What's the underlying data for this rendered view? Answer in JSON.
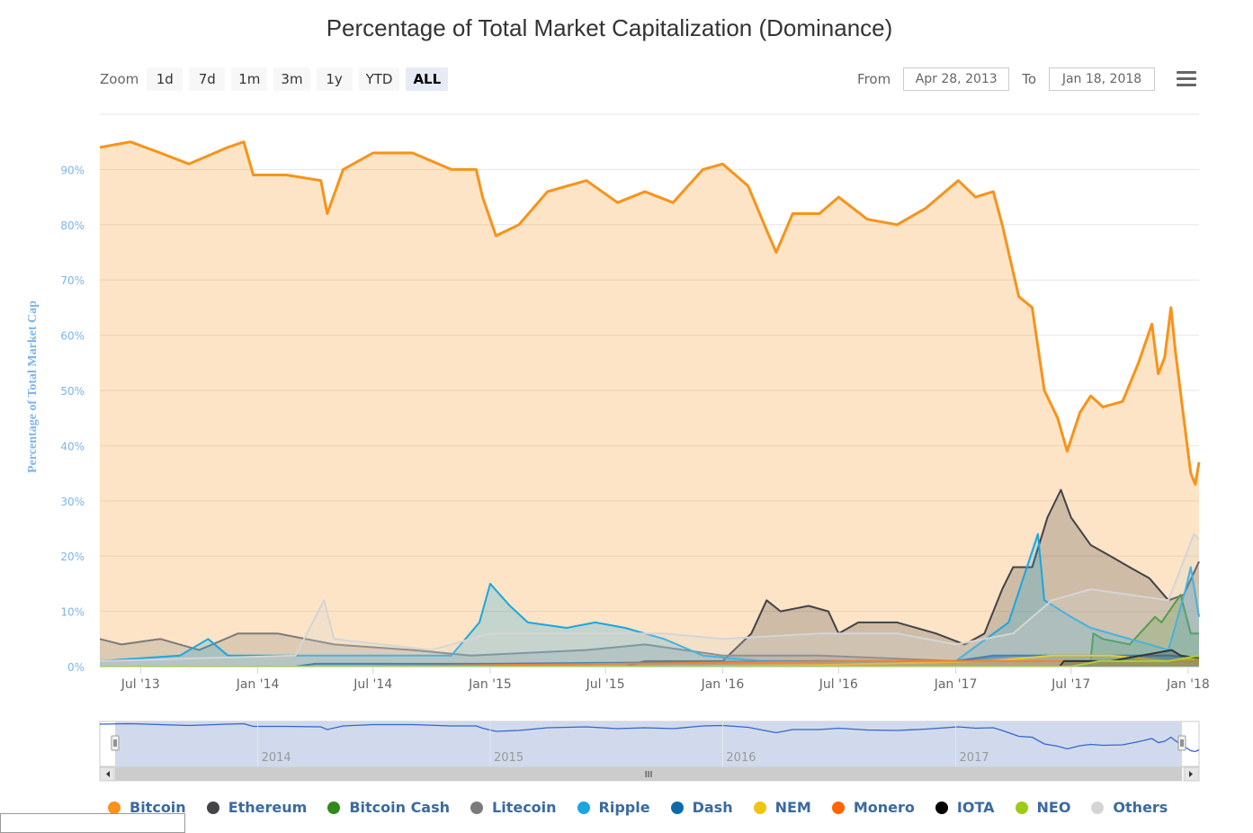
{
  "title": "Percentage of Total Market Capitalization (Dominance)",
  "zoom": {
    "label": "Zoom",
    "buttons": [
      "1d",
      "7d",
      "1m",
      "3m",
      "1y",
      "YTD",
      "ALL"
    ],
    "active": "ALL"
  },
  "range": {
    "from_label": "From",
    "from_value": "Apr 28, 2013",
    "to_label": "To",
    "to_value": "Jan 18, 2018"
  },
  "menu_icon": "hamburger-menu-icon",
  "navigator": {
    "year_labels": [
      "2014",
      "2015",
      "2016",
      "2017"
    ],
    "scroll_left_icon": "arrow-left-icon",
    "scroll_right_icon": "arrow-right-icon",
    "grip": "III"
  },
  "chart_data": {
    "type": "area",
    "title": "Percentage of Total Market Capitalization (Dominance)",
    "ylabel": "Percentage of Total Market Cap",
    "xlabel": "",
    "ylim": [
      0,
      100
    ],
    "yticks": [
      "0%",
      "10%",
      "20%",
      "30%",
      "40%",
      "50%",
      "60%",
      "70%",
      "80%",
      "90%"
    ],
    "xticks": [
      "Jul '13",
      "Jan '14",
      "Jul '14",
      "Jan '15",
      "Jul '15",
      "Jan '16",
      "Jul '16",
      "Jan '17",
      "Jul '17",
      "Jan '18"
    ],
    "x_range": [
      "2013-04-28",
      "2018-01-18"
    ],
    "grid": true,
    "legend_position": "bottom",
    "series": [
      {
        "name": "Bitcoin",
        "color": "#f7931a",
        "points": [
          [
            "2013-04-28",
            94
          ],
          [
            "2013-06-15",
            95
          ],
          [
            "2013-08-01",
            93
          ],
          [
            "2013-09-15",
            91
          ],
          [
            "2013-11-15",
            94
          ],
          [
            "2013-12-10",
            95
          ],
          [
            "2013-12-25",
            89
          ],
          [
            "2014-02-15",
            89
          ],
          [
            "2014-04-10",
            88
          ],
          [
            "2014-04-20",
            82
          ],
          [
            "2014-05-15",
            90
          ],
          [
            "2014-07-01",
            93
          ],
          [
            "2014-09-01",
            93
          ],
          [
            "2014-11-01",
            90
          ],
          [
            "2014-12-10",
            90
          ],
          [
            "2014-12-20",
            85
          ],
          [
            "2015-01-10",
            78
          ],
          [
            "2015-02-15",
            80
          ],
          [
            "2015-04-01",
            86
          ],
          [
            "2015-06-01",
            88
          ],
          [
            "2015-07-20",
            84
          ],
          [
            "2015-09-01",
            86
          ],
          [
            "2015-10-15",
            84
          ],
          [
            "2015-12-01",
            90
          ],
          [
            "2016-01-01",
            91
          ],
          [
            "2016-02-10",
            87
          ],
          [
            "2016-03-10",
            79
          ],
          [
            "2016-03-25",
            75
          ],
          [
            "2016-04-20",
            82
          ],
          [
            "2016-06-01",
            82
          ],
          [
            "2016-07-01",
            85
          ],
          [
            "2016-08-15",
            81
          ],
          [
            "2016-10-01",
            80
          ],
          [
            "2016-11-15",
            83
          ],
          [
            "2017-01-05",
            88
          ],
          [
            "2017-02-01",
            85
          ],
          [
            "2017-03-01",
            86
          ],
          [
            "2017-03-15",
            80
          ],
          [
            "2017-04-10",
            67
          ],
          [
            "2017-05-01",
            65
          ],
          [
            "2017-05-20",
            50
          ],
          [
            "2017-06-10",
            45
          ],
          [
            "2017-06-25",
            39
          ],
          [
            "2017-07-15",
            46
          ],
          [
            "2017-08-01",
            49
          ],
          [
            "2017-08-20",
            47
          ],
          [
            "2017-09-20",
            48
          ],
          [
            "2017-10-15",
            55
          ],
          [
            "2017-11-05",
            62
          ],
          [
            "2017-11-15",
            53
          ],
          [
            "2017-11-25",
            56
          ],
          [
            "2017-12-05",
            65
          ],
          [
            "2017-12-12",
            57
          ],
          [
            "2017-12-25",
            45
          ],
          [
            "2018-01-05",
            35
          ],
          [
            "2018-01-12",
            33
          ],
          [
            "2018-01-18",
            37
          ]
        ]
      },
      {
        "name": "Ethereum",
        "color": "#434348",
        "points": [
          [
            "2013-04-28",
            0
          ],
          [
            "2015-08-01",
            0
          ],
          [
            "2015-09-01",
            1
          ],
          [
            "2016-01-01",
            1
          ],
          [
            "2016-02-15",
            6
          ],
          [
            "2016-03-10",
            12
          ],
          [
            "2016-04-01",
            10
          ],
          [
            "2016-05-15",
            11
          ],
          [
            "2016-06-15",
            10
          ],
          [
            "2016-07-01",
            6
          ],
          [
            "2016-08-01",
            8
          ],
          [
            "2016-10-01",
            8
          ],
          [
            "2016-12-01",
            6
          ],
          [
            "2017-01-15",
            4
          ],
          [
            "2017-02-15",
            6
          ],
          [
            "2017-03-15",
            14
          ],
          [
            "2017-04-01",
            18
          ],
          [
            "2017-05-01",
            18
          ],
          [
            "2017-05-25",
            27
          ],
          [
            "2017-06-15",
            32
          ],
          [
            "2017-07-01",
            27
          ],
          [
            "2017-08-01",
            22
          ],
          [
            "2017-09-01",
            20
          ],
          [
            "2017-10-01",
            18
          ],
          [
            "2017-11-01",
            16
          ],
          [
            "2017-12-01",
            12
          ],
          [
            "2017-12-25",
            13
          ],
          [
            "2018-01-10",
            17
          ],
          [
            "2018-01-18",
            19
          ]
        ]
      },
      {
        "name": "Bitcoin Cash",
        "color": "#2f8a1c",
        "points": [
          [
            "2013-04-28",
            0
          ],
          [
            "2017-07-31",
            0
          ],
          [
            "2017-08-05",
            6
          ],
          [
            "2017-08-20",
            5
          ],
          [
            "2017-10-01",
            4
          ],
          [
            "2017-11-10",
            9
          ],
          [
            "2017-11-20",
            8
          ],
          [
            "2017-12-20",
            13
          ],
          [
            "2018-01-05",
            6
          ],
          [
            "2018-01-18",
            6
          ]
        ]
      },
      {
        "name": "Litecoin",
        "color": "#7a7a7a",
        "points": [
          [
            "2013-04-28",
            5
          ],
          [
            "2013-06-01",
            4
          ],
          [
            "2013-08-01",
            5
          ],
          [
            "2013-10-01",
            3
          ],
          [
            "2013-12-01",
            6
          ],
          [
            "2014-02-01",
            6
          ],
          [
            "2014-05-01",
            4
          ],
          [
            "2014-09-01",
            3
          ],
          [
            "2014-12-01",
            2
          ],
          [
            "2015-06-01",
            3
          ],
          [
            "2015-09-01",
            4
          ],
          [
            "2016-01-01",
            2
          ],
          [
            "2016-06-01",
            2
          ],
          [
            "2017-01-01",
            1
          ],
          [
            "2017-04-01",
            2
          ],
          [
            "2017-06-01",
            2
          ],
          [
            "2017-09-01",
            2
          ],
          [
            "2017-12-15",
            2
          ],
          [
            "2018-01-18",
            1.5
          ]
        ]
      },
      {
        "name": "Ripple",
        "color": "#19a7e0",
        "points": [
          [
            "2013-04-28",
            1
          ],
          [
            "2013-09-01",
            2
          ],
          [
            "2013-10-15",
            5
          ],
          [
            "2013-11-15",
            2
          ],
          [
            "2014-01-01",
            2
          ],
          [
            "2014-06-01",
            2
          ],
          [
            "2014-11-01",
            2
          ],
          [
            "2014-12-15",
            8
          ],
          [
            "2015-01-01",
            15
          ],
          [
            "2015-02-01",
            11
          ],
          [
            "2015-03-01",
            8
          ],
          [
            "2015-05-01",
            7
          ],
          [
            "2015-06-15",
            8
          ],
          [
            "2015-08-01",
            7
          ],
          [
            "2015-10-01",
            5
          ],
          [
            "2015-12-01",
            2
          ],
          [
            "2016-03-01",
            1
          ],
          [
            "2016-09-01",
            1
          ],
          [
            "2017-01-01",
            1
          ],
          [
            "2017-03-25",
            8
          ],
          [
            "2017-05-10",
            24
          ],
          [
            "2017-05-20",
            12
          ],
          [
            "2017-07-01",
            9
          ],
          [
            "2017-08-01",
            7
          ],
          [
            "2017-10-01",
            5
          ],
          [
            "2017-12-01",
            3
          ],
          [
            "2017-12-28",
            14
          ],
          [
            "2018-01-05",
            18
          ],
          [
            "2018-01-18",
            9
          ]
        ]
      },
      {
        "name": "Dash",
        "color": "#0d6aa9",
        "points": [
          [
            "2013-04-28",
            0
          ],
          [
            "2014-03-01",
            0
          ],
          [
            "2014-04-01",
            0.5
          ],
          [
            "2015-01-01",
            0.5
          ],
          [
            "2016-06-01",
            1
          ],
          [
            "2017-01-01",
            1
          ],
          [
            "2017-03-01",
            2
          ],
          [
            "2017-06-01",
            2
          ],
          [
            "2017-09-01",
            2
          ],
          [
            "2017-12-01",
            2
          ],
          [
            "2018-01-18",
            1.5
          ]
        ]
      },
      {
        "name": "NEM",
        "color": "#f1c40f",
        "points": [
          [
            "2013-04-28",
            0
          ],
          [
            "2015-06-01",
            0
          ],
          [
            "2016-06-01",
            0.3
          ],
          [
            "2017-03-01",
            1
          ],
          [
            "2017-06-01",
            2
          ],
          [
            "2017-09-01",
            2
          ],
          [
            "2017-12-01",
            1
          ],
          [
            "2018-01-18",
            1.5
          ]
        ]
      },
      {
        "name": "Monero",
        "color": "#ff6600",
        "points": [
          [
            "2013-04-28",
            0
          ],
          [
            "2014-06-01",
            0
          ],
          [
            "2016-08-01",
            1
          ],
          [
            "2016-12-01",
            1
          ],
          [
            "2017-03-01",
            1
          ],
          [
            "2017-06-01",
            1
          ],
          [
            "2017-12-01",
            1
          ],
          [
            "2018-01-18",
            1
          ]
        ]
      },
      {
        "name": "IOTA",
        "color": "#000000",
        "points": [
          [
            "2013-04-28",
            0
          ],
          [
            "2017-06-13",
            0
          ],
          [
            "2017-06-20",
            1
          ],
          [
            "2017-09-01",
            1
          ],
          [
            "2017-12-06",
            3
          ],
          [
            "2017-12-20",
            2
          ],
          [
            "2018-01-18",
            1.5
          ]
        ]
      },
      {
        "name": "NEO",
        "color": "#9ccc12",
        "points": [
          [
            "2013-04-28",
            0
          ],
          [
            "2017-07-01",
            0
          ],
          [
            "2017-08-15",
            1
          ],
          [
            "2017-10-01",
            1
          ],
          [
            "2017-12-01",
            1
          ],
          [
            "2018-01-18",
            2
          ]
        ]
      },
      {
        "name": "Others",
        "color": "#d5d5d5",
        "points": [
          [
            "2013-04-28",
            1
          ],
          [
            "2014-03-01",
            2
          ],
          [
            "2014-04-15",
            12
          ],
          [
            "2014-05-01",
            5
          ],
          [
            "2014-10-01",
            3
          ],
          [
            "2015-01-01",
            6
          ],
          [
            "2015-04-01",
            6
          ],
          [
            "2015-10-01",
            6
          ],
          [
            "2016-01-01",
            5
          ],
          [
            "2016-06-01",
            6
          ],
          [
            "2016-10-01",
            6
          ],
          [
            "2017-01-01",
            4
          ],
          [
            "2017-04-01",
            6
          ],
          [
            "2017-06-01",
            12
          ],
          [
            "2017-08-01",
            14
          ],
          [
            "2017-10-01",
            13
          ],
          [
            "2017-12-01",
            12
          ],
          [
            "2018-01-10",
            24
          ],
          [
            "2018-01-18",
            23
          ]
        ]
      }
    ]
  }
}
